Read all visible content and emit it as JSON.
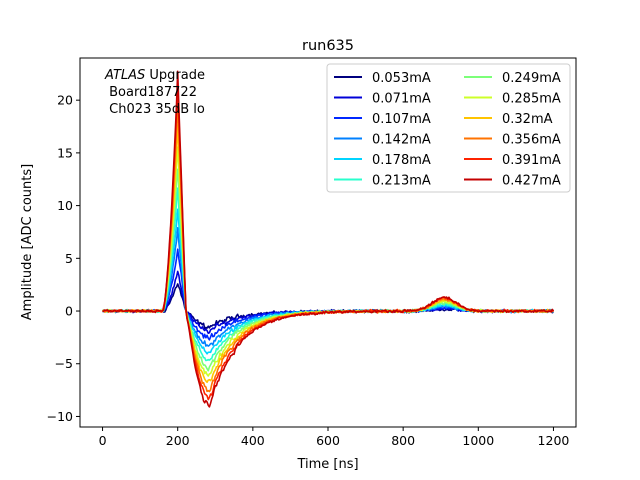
{
  "chart_data": {
    "type": "line",
    "title": "run635",
    "xlabel": "Time [ns]",
    "ylabel": "Amplitude [ADC counts]",
    "xlim": [
      -60,
      1260
    ],
    "ylim": [
      -11,
      24
    ],
    "xticks": [
      0,
      200,
      400,
      600,
      800,
      1000,
      1200
    ],
    "yticks": [
      -10,
      -5,
      0,
      5,
      10,
      15,
      20
    ],
    "grid": false,
    "legend_placement": "top-right",
    "legend_columns": 2,
    "annotation": {
      "italic": "ATLAS",
      "line1_rest": " Upgrade",
      "line2": " Board187722",
      "line3": " Ch023 35dB lo"
    },
    "series": [
      {
        "name": "0.053mA",
        "color": "#00007f",
        "peak": 2.7,
        "undershoot": -1.5
      },
      {
        "name": "0.071mA",
        "color": "#0000d8",
        "peak": 3.8,
        "undershoot": -1.9
      },
      {
        "name": "0.107mA",
        "color": "#0028ff",
        "peak": 5.8,
        "undershoot": -2.6
      },
      {
        "name": "0.142mA",
        "color": "#0080ff",
        "peak": 7.6,
        "undershoot": -3.3
      },
      {
        "name": "0.178mA",
        "color": "#00d4ff",
        "peak": 9.6,
        "undershoot": -4.0
      },
      {
        "name": "0.213mA",
        "color": "#29ffcd",
        "peak": 11.6,
        "undershoot": -4.7
      },
      {
        "name": "0.249mA",
        "color": "#7cff79",
        "peak": 13.6,
        "undershoot": -5.4
      },
      {
        "name": "0.285mA",
        "color": "#cdff29",
        "peak": 15.6,
        "undershoot": -6.1
      },
      {
        "name": "0.32mA",
        "color": "#ffc400",
        "peak": 17.6,
        "undershoot": -6.8
      },
      {
        "name": "0.356mA",
        "color": "#ff7300",
        "peak": 19.6,
        "undershoot": -7.5
      },
      {
        "name": "0.391mA",
        "color": "#fe2300",
        "peak": 21.3,
        "undershoot": -8.3
      },
      {
        "name": "0.427mA",
        "color": "#c40000",
        "peak": 22.5,
        "undershoot": -9.0
      }
    ]
  }
}
